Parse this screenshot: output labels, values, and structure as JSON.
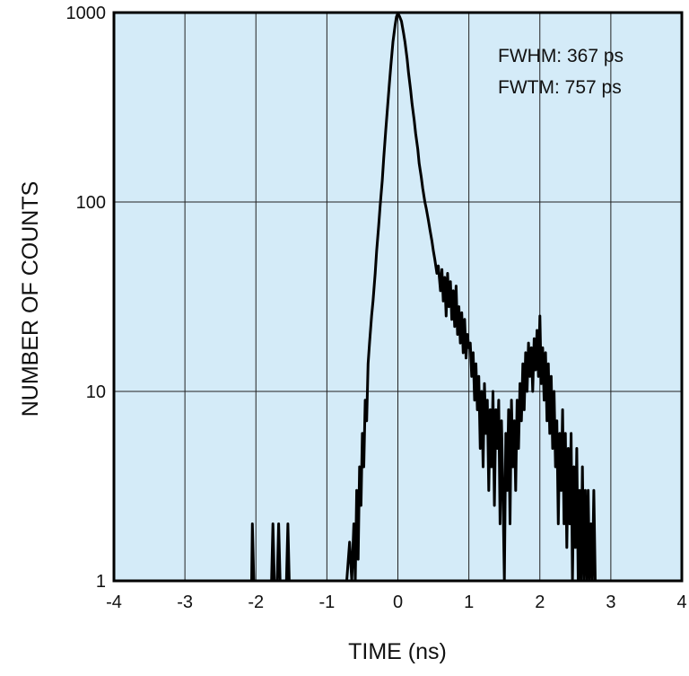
{
  "chart_data": {
    "type": "line",
    "title": "",
    "xlabel": "TIME (ns)",
    "ylabel": "NUMBER OF COUNTS",
    "xlim": [
      -4,
      4
    ],
    "ylim": [
      1,
      1000
    ],
    "yscale": "log",
    "grid": true,
    "background_color": "#d4ebf8",
    "line_color": "#000000",
    "x_ticks": [
      "-4",
      "-3",
      "-2",
      "-1",
      "0",
      "1",
      "2",
      "3",
      "4"
    ],
    "y_ticks": [
      "1",
      "10",
      "100",
      "1000"
    ],
    "annotations": [
      "FWHM: 367 ps",
      "FWTM: 757 ps"
    ],
    "series": [
      {
        "points": [
          [
            -2.1,
            1
          ],
          [
            -2.06,
            1
          ],
          [
            -2.05,
            2
          ],
          [
            -2.03,
            1
          ],
          [
            -1.78,
            1
          ],
          [
            -1.76,
            2
          ],
          [
            -1.74,
            1
          ],
          [
            -1.7,
            1
          ],
          [
            -1.68,
            2
          ],
          [
            -1.66,
            1
          ],
          [
            -1.57,
            1
          ],
          [
            -1.55,
            2
          ],
          [
            -1.53,
            1
          ],
          [
            -0.72,
            1
          ],
          [
            -0.68,
            1.6
          ],
          [
            -0.65,
            1
          ],
          [
            -0.62,
            2
          ],
          [
            -0.6,
            1
          ],
          [
            -0.58,
            3
          ],
          [
            -0.56,
            1.3
          ],
          [
            -0.54,
            4
          ],
          [
            -0.52,
            2.5
          ],
          [
            -0.5,
            6
          ],
          [
            -0.48,
            4
          ],
          [
            -0.46,
            9
          ],
          [
            -0.44,
            7
          ],
          [
            -0.42,
            14
          ],
          [
            -0.4,
            18
          ],
          [
            -0.37,
            25
          ],
          [
            -0.35,
            30
          ],
          [
            -0.32,
            42
          ],
          [
            -0.3,
            55
          ],
          [
            -0.27,
            75
          ],
          [
            -0.25,
            95
          ],
          [
            -0.22,
            130
          ],
          [
            -0.2,
            170
          ],
          [
            -0.17,
            240
          ],
          [
            -0.15,
            300
          ],
          [
            -0.12,
            420
          ],
          [
            -0.1,
            520
          ],
          [
            -0.07,
            700
          ],
          [
            -0.04,
            850
          ],
          [
            -0.02,
            950
          ],
          [
            0,
            990
          ],
          [
            0.02,
            960
          ],
          [
            0.05,
            900
          ],
          [
            0.08,
            780
          ],
          [
            0.1,
            700
          ],
          [
            0.13,
            570
          ],
          [
            0.15,
            480
          ],
          [
            0.18,
            390
          ],
          [
            0.2,
            330
          ],
          [
            0.23,
            270
          ],
          [
            0.25,
            230
          ],
          [
            0.28,
            190
          ],
          [
            0.3,
            160
          ],
          [
            0.33,
            135
          ],
          [
            0.35,
            118
          ],
          [
            0.38,
            100
          ],
          [
            0.4,
            92
          ],
          [
            0.43,
            80
          ],
          [
            0.45,
            72
          ],
          [
            0.48,
            62
          ],
          [
            0.5,
            55
          ],
          [
            0.52,
            50
          ],
          [
            0.55,
            42
          ],
          [
            0.57,
            46
          ],
          [
            0.6,
            34
          ],
          [
            0.62,
            44
          ],
          [
            0.64,
            30
          ],
          [
            0.66,
            40
          ],
          [
            0.68,
            25
          ],
          [
            0.7,
            42
          ],
          [
            0.72,
            28
          ],
          [
            0.74,
            38
          ],
          [
            0.76,
            24
          ],
          [
            0.78,
            34
          ],
          [
            0.8,
            22
          ],
          [
            0.82,
            36
          ],
          [
            0.84,
            20
          ],
          [
            0.86,
            28
          ],
          [
            0.88,
            18
          ],
          [
            0.9,
            26
          ],
          [
            0.92,
            16
          ],
          [
            0.94,
            24
          ],
          [
            0.96,
            15
          ],
          [
            0.98,
            20
          ],
          [
            1.0,
            17
          ],
          [
            1.02,
            18
          ],
          [
            1.04,
            12
          ],
          [
            1.06,
            16
          ],
          [
            1.08,
            9
          ],
          [
            1.1,
            14
          ],
          [
            1.12,
            8
          ],
          [
            1.14,
            12
          ],
          [
            1.16,
            5
          ],
          [
            1.18,
            10
          ],
          [
            1.2,
            4
          ],
          [
            1.22,
            11
          ],
          [
            1.24,
            6
          ],
          [
            1.26,
            9
          ],
          [
            1.28,
            3
          ],
          [
            1.3,
            8
          ],
          [
            1.32,
            4
          ],
          [
            1.34,
            10
          ],
          [
            1.36,
            2.5
          ],
          [
            1.38,
            8
          ],
          [
            1.4,
            5
          ],
          [
            1.42,
            9
          ],
          [
            1.44,
            2
          ],
          [
            1.46,
            7
          ],
          [
            1.48,
            3
          ],
          [
            1.5,
            1
          ],
          [
            1.52,
            6
          ],
          [
            1.54,
            3
          ],
          [
            1.56,
            8
          ],
          [
            1.58,
            2
          ],
          [
            1.6,
            9
          ],
          [
            1.62,
            4
          ],
          [
            1.64,
            7
          ],
          [
            1.66,
            3
          ],
          [
            1.68,
            9
          ],
          [
            1.7,
            5
          ],
          [
            1.72,
            11
          ],
          [
            1.74,
            7
          ],
          [
            1.76,
            14
          ],
          [
            1.78,
            8
          ],
          [
            1.8,
            16
          ],
          [
            1.82,
            10
          ],
          [
            1.84,
            18
          ],
          [
            1.86,
            12
          ],
          [
            1.88,
            17
          ],
          [
            1.9,
            10
          ],
          [
            1.92,
            19
          ],
          [
            1.94,
            13
          ],
          [
            1.96,
            21
          ],
          [
            1.98,
            12
          ],
          [
            2.0,
            25
          ],
          [
            2.02,
            11
          ],
          [
            2.04,
            17
          ],
          [
            2.06,
            9
          ],
          [
            2.08,
            16
          ],
          [
            2.1,
            7
          ],
          [
            2.12,
            14
          ],
          [
            2.14,
            6
          ],
          [
            2.16,
            12
          ],
          [
            2.18,
            5
          ],
          [
            2.2,
            10
          ],
          [
            2.22,
            4
          ],
          [
            2.24,
            7
          ],
          [
            2.26,
            2
          ],
          [
            2.28,
            6
          ],
          [
            2.3,
            3
          ],
          [
            2.32,
            8
          ],
          [
            2.34,
            2
          ],
          [
            2.36,
            6
          ],
          [
            2.38,
            1.5
          ],
          [
            2.4,
            5
          ],
          [
            2.42,
            2
          ],
          [
            2.44,
            6
          ],
          [
            2.46,
            1
          ],
          [
            2.48,
            4
          ],
          [
            2.5,
            1.5
          ],
          [
            2.52,
            5
          ],
          [
            2.54,
            1
          ],
          [
            2.56,
            3
          ],
          [
            2.58,
            1
          ],
          [
            2.6,
            4
          ],
          [
            2.62,
            1
          ],
          [
            2.64,
            3
          ],
          [
            2.66,
            1
          ],
          [
            2.68,
            3
          ],
          [
            2.7,
            1
          ],
          [
            2.72,
            2
          ],
          [
            2.74,
            1
          ],
          [
            2.76,
            3
          ],
          [
            2.78,
            1
          ]
        ]
      }
    ]
  }
}
